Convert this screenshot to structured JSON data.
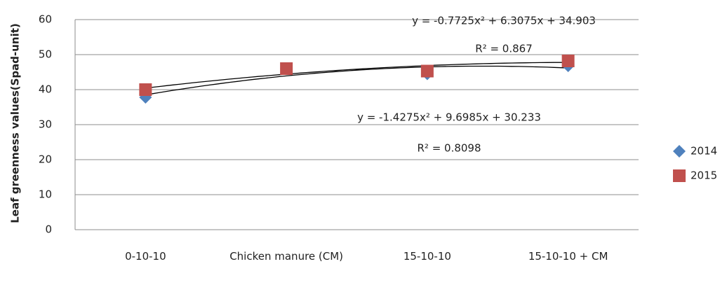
{
  "chart_data": {
    "type": "scatter",
    "y_label": "Leaf greenness values(Spad-unit)",
    "categories": [
      "0-10-10",
      "Chicken manure (CM)",
      "15-10-10",
      "15-10-10 + CM"
    ],
    "ylim": [
      0,
      60
    ],
    "yticks": [
      0,
      10,
      20,
      30,
      40,
      50,
      60
    ],
    "grid": true,
    "legend": "right",
    "series": [
      {
        "name": "2014",
        "color": "#4f81bd",
        "marker": "diamond",
        "values": [
          37.8,
          46,
          44.5,
          46.8
        ],
        "trendline": {
          "coefficients": [
            -1.4275,
            9.6985,
            30.233
          ],
          "equation": "y = -1.4275x² + 9.6985x + 30.233",
          "r2_label": "R² = 0.8098"
        }
      },
      {
        "name": "2015",
        "color": "#c0504d",
        "marker": "square",
        "values": [
          40,
          46,
          45.3,
          48.2
        ],
        "trendline": {
          "coefficients": [
            -0.7725,
            6.3075,
            34.903
          ],
          "equation": "y = -0.7725x² + 6.3075x + 34.903",
          "r2_label": "R² = 0.867"
        }
      }
    ]
  }
}
